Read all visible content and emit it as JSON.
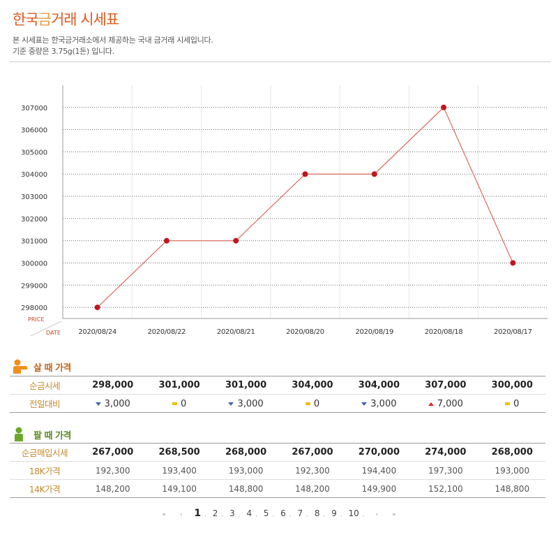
{
  "header": {
    "title_part1": "한국",
    "title_part2": "금",
    "title_part3": "거래 시세표",
    "desc_line1": "본 시세표는 한국금거래소에서 제공하는 국내 금거래 시세입니다.",
    "desc_line2": "기준 중량은 3.75g(1돈) 입니다."
  },
  "chart_data": {
    "type": "line",
    "x_label": "DATE",
    "y_label": "PRICE",
    "x": [
      "2020/08/24",
      "2020/08/22",
      "2020/08/21",
      "2020/08/20",
      "2020/08/19",
      "2020/08/18",
      "2020/08/17"
    ],
    "values": [
      298000,
      301000,
      301000,
      304000,
      304000,
      307000,
      300000
    ],
    "y_ticks": [
      298000,
      299000,
      300000,
      301000,
      302000,
      303000,
      304000,
      305000,
      306000,
      307000
    ],
    "ylim": [
      297500,
      308000
    ],
    "grid": true,
    "line_color": "#d86a5a",
    "point_color": "#c0161c"
  },
  "buy": {
    "heading": "살 때 가격",
    "rows": [
      {
        "label": "순금시세",
        "cells": [
          "298,000",
          "301,000",
          "301,000",
          "304,000",
          "304,000",
          "307,000",
          "300,000"
        ]
      },
      {
        "label": "전일대비",
        "cells": [
          {
            "dir": "down",
            "value": "3,000"
          },
          {
            "dir": "same",
            "value": "0"
          },
          {
            "dir": "down",
            "value": "3,000"
          },
          {
            "dir": "same",
            "value": "0"
          },
          {
            "dir": "down",
            "value": "3,000"
          },
          {
            "dir": "up",
            "value": "7,000"
          },
          {
            "dir": "same",
            "value": "0"
          }
        ]
      }
    ]
  },
  "sell": {
    "heading": "팔 때 가격",
    "rows": [
      {
        "label": "순금매입시세",
        "cells": [
          "267,000",
          "268,500",
          "268,000",
          "267,000",
          "270,000",
          "274,000",
          "268,000"
        ]
      },
      {
        "label": "18K가격",
        "cells": [
          "192,300",
          "193,400",
          "193,000",
          "192,300",
          "194,400",
          "197,300",
          "193,000"
        ]
      },
      {
        "label": "14K가격",
        "cells": [
          "148,200",
          "149,100",
          "148,800",
          "148,200",
          "149,900",
          "152,100",
          "148,800"
        ]
      }
    ]
  },
  "pager": {
    "first": "«",
    "prev": "‹",
    "next": "›",
    "last": "»",
    "current": 1,
    "pages": [
      "1",
      "2",
      "3",
      "4",
      "5",
      "6",
      "7",
      "8",
      "9",
      "10"
    ]
  },
  "colors": {
    "buy_icon": "#f0901c",
    "sell_icon": "#6aa82a",
    "arrow_up": "#d8261c",
    "arrow_down": "#3b63b3",
    "arrow_same": "#f0c000"
  }
}
